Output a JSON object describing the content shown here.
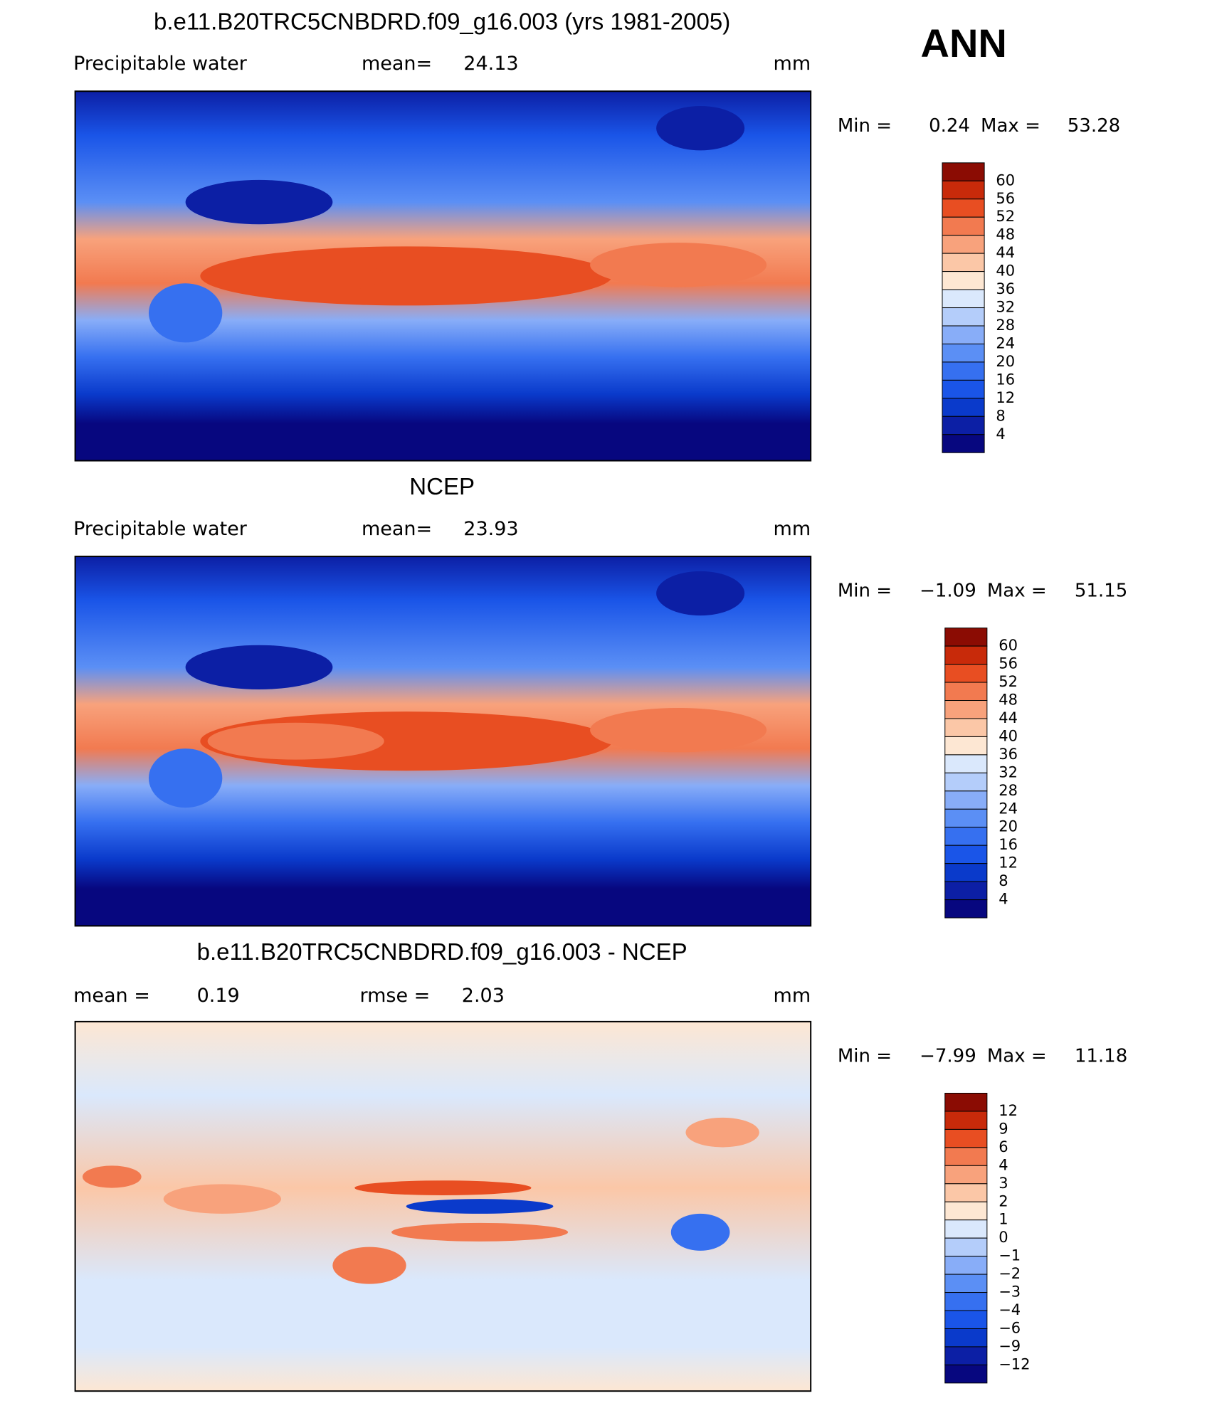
{
  "header": {
    "label": "ANN"
  },
  "panels": [
    {
      "title": "b.e11.B20TRC5CNBDRD.f09_g16.003 (yrs 1981-2005)",
      "left": [
        "Precipitable  water"
      ],
      "center": [
        "mean=",
        "24.13"
      ],
      "right": "mm",
      "min_label": "Min =",
      "min": "0.24",
      "max_label": "Max =",
      "max": "53.28",
      "colorbar": [
        "60",
        "56",
        "52",
        "48",
        "44",
        "40",
        "36",
        "32",
        "28",
        "24",
        "20",
        "16",
        "12",
        "8",
        "4"
      ]
    },
    {
      "title": "NCEP",
      "left": [
        "Precipitable  water"
      ],
      "center": [
        "mean=",
        "23.93"
      ],
      "right": "mm",
      "min_label": "Min =",
      "min": "−1.09",
      "max_label": "Max =",
      "max": "51.15",
      "colorbar": [
        "60",
        "56",
        "52",
        "48",
        "44",
        "40",
        "36",
        "32",
        "28",
        "24",
        "20",
        "16",
        "12",
        "8",
        "4"
      ]
    },
    {
      "title": "b.e11.B20TRC5CNBDRD.f09_g16.003 - NCEP",
      "left": [
        "mean =",
        "0.19"
      ],
      "center": [
        "rmse =",
        "2.03"
      ],
      "right": "mm",
      "min_label": "Min =",
      "min": "−7.99",
      "max_label": "Max =",
      "max": "11.18",
      "colorbar": [
        "12",
        "9",
        "6",
        "4",
        "3",
        "2",
        "1",
        "0",
        "−1",
        "−2",
        "−3",
        "−4",
        "−6",
        "−9",
        "−12"
      ]
    }
  ],
  "colorbar_colors": [
    "#8b0c03",
    "#c82a0a",
    "#e84e22",
    "#f27a50",
    "#f8a27c",
    "#fbc7a7",
    "#fde7d3",
    "#dae8fc",
    "#b4cdfa",
    "#88adf8",
    "#5b8ff5",
    "#3670f0",
    "#1a55e8",
    "#0a3acb",
    "#0c1fa5",
    "#07077f"
  ]
}
